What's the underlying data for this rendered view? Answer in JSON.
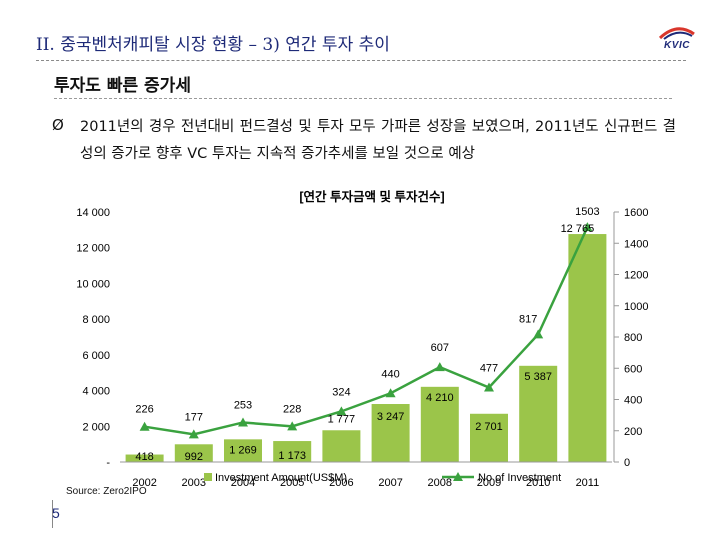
{
  "slide": {
    "title": "II. 중국벤처캐피탈 시장 현황 – 3) 연간 투자 추이",
    "subtitle": "투자도 빠른 증가세",
    "bullet_mark": "Ø",
    "bullet": "2011년의 경우 전년대비 펀드결성 및 투자 모두 가파른 성장을 보였으며, 2011년도 신규펀드 결성의 증가로 향후 VC 투자는 지속적 증가추세를 보일 것으로 예상",
    "logo_text": "KVIC",
    "source": "Source: Zero2IPO",
    "page_number": "5"
  },
  "colors": {
    "bar": "#9bc54a",
    "line": "#3aa23f",
    "title": "#1e2a78"
  },
  "chart_data": {
    "type": "bar",
    "title": "[연간 투자금액 및 투자건수]",
    "categories": [
      "2002",
      "2003",
      "2004",
      "2005",
      "2006",
      "2007",
      "2008",
      "2009",
      "2010",
      "2011"
    ],
    "series": [
      {
        "name": "Investment Amount(US$M)",
        "type": "bar",
        "axis": "left",
        "values": [
          418,
          992,
          1269,
          1173,
          1777,
          3247,
          4210,
          2701,
          5387,
          12765
        ],
        "labels": [
          "418",
          "992",
          "1 269",
          "1 173",
          "1 777",
          "3 247",
          "4 210",
          "2 701",
          "5 387",
          "12 765"
        ]
      },
      {
        "name": "No of Investment",
        "type": "line",
        "axis": "right",
        "values": [
          226,
          177,
          253,
          228,
          324,
          440,
          607,
          477,
          817,
          1503
        ],
        "labels": [
          "226",
          "177",
          "253",
          "228",
          "324",
          "440",
          "607",
          "477",
          "817",
          "1503"
        ]
      }
    ],
    "y_left": {
      "range": [
        0,
        14000
      ],
      "ticks": [
        0,
        2000,
        4000,
        6000,
        8000,
        10000,
        12000,
        14000
      ],
      "tick_labels": [
        "-",
        "2 000",
        "4 000",
        "6 000",
        "8 000",
        "10 000",
        "12 000",
        "14 000"
      ]
    },
    "y_right": {
      "range": [
        0,
        1600
      ],
      "ticks": [
        0,
        200,
        400,
        600,
        800,
        1000,
        1200,
        1400,
        1600
      ],
      "tick_labels": [
        "0",
        "200",
        "400",
        "600",
        "800",
        "1000",
        "1200",
        "1400",
        "1600"
      ]
    },
    "legend": [
      {
        "label": "Investment Amount(US$M)",
        "kind": "bar"
      },
      {
        "label": "No of Investment",
        "kind": "line"
      }
    ],
    "legend_position": "bottom"
  }
}
